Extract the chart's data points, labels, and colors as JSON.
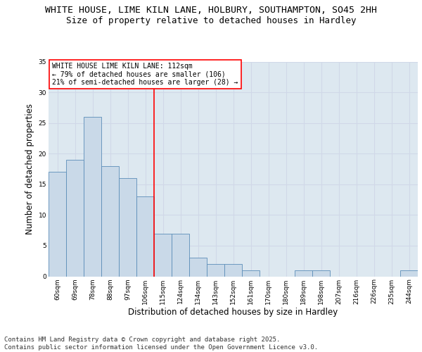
{
  "title_line1": "WHITE HOUSE, LIME KILN LANE, HOLBURY, SOUTHAMPTON, SO45 2HH",
  "title_line2": "Size of property relative to detached houses in Hardley",
  "xlabel": "Distribution of detached houses by size in Hardley",
  "ylabel": "Number of detached properties",
  "categories": [
    "60sqm",
    "69sqm",
    "78sqm",
    "88sqm",
    "97sqm",
    "106sqm",
    "115sqm",
    "124sqm",
    "134sqm",
    "143sqm",
    "152sqm",
    "161sqm",
    "170sqm",
    "180sqm",
    "189sqm",
    "198sqm",
    "207sqm",
    "216sqm",
    "226sqm",
    "235sqm",
    "244sqm"
  ],
  "values": [
    17,
    19,
    26,
    18,
    16,
    13,
    7,
    7,
    3,
    2,
    2,
    1,
    0,
    0,
    1,
    1,
    0,
    0,
    0,
    0,
    1
  ],
  "bar_color": "#c9d9e8",
  "bar_edge_color": "#5b8db8",
  "grid_color": "#d0d8e8",
  "background_color": "#dde8f0",
  "red_line_x": 5.5,
  "annotation_text": "WHITE HOUSE LIME KILN LANE: 112sqm\n← 79% of detached houses are smaller (106)\n21% of semi-detached houses are larger (28) →",
  "annotation_box_color": "white",
  "annotation_box_edge": "red",
  "property_line_color": "red",
  "ylim": [
    0,
    35
  ],
  "yticks": [
    0,
    5,
    10,
    15,
    20,
    25,
    30,
    35
  ],
  "footer_text": "Contains HM Land Registry data © Crown copyright and database right 2025.\nContains public sector information licensed under the Open Government Licence v3.0.",
  "title_fontsize": 9.5,
  "subtitle_fontsize": 9,
  "axis_label_fontsize": 8.5,
  "tick_fontsize": 6.5,
  "annotation_fontsize": 7,
  "footer_fontsize": 6.5
}
